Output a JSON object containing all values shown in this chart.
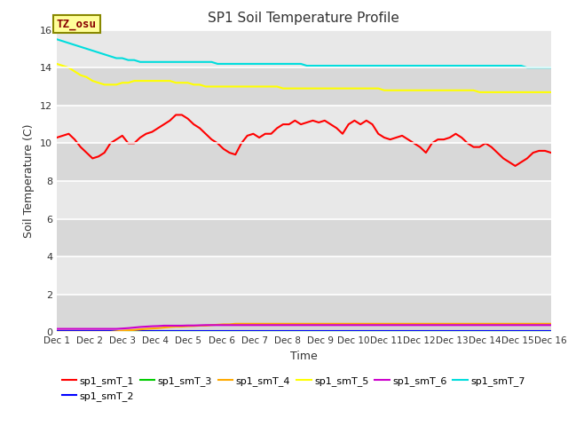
{
  "title": "SP1 Soil Temperature Profile",
  "xlabel": "Time",
  "ylabel": "Soil Temperature (C)",
  "bg_color_light": "#ebebeb",
  "bg_color_dark": "#d8d8d8",
  "fig_color": "#ffffff",
  "annotation_text": "TZ_osu",
  "annotation_bg": "#ffff99",
  "annotation_border": "#999900",
  "annotation_text_color": "#880000",
  "ylim": [
    0,
    16
  ],
  "yticks": [
    0,
    2,
    4,
    6,
    8,
    10,
    12,
    14,
    16
  ],
  "xtick_labels": [
    "Dec 1",
    "Dec 2",
    "Dec 3",
    "Dec 4",
    "Dec 5",
    "Dec 6",
    "Dec 7",
    "Dec 8",
    "Dec 9",
    "Dec 9",
    "Dec 10",
    "Dec 11",
    "Dec 12",
    "Dec 13",
    "Dec 14",
    "Dec 15",
    "Dec 16"
  ],
  "series": {
    "sp1_smT_1": {
      "color": "#ff0000",
      "lw": 1.5,
      "values": [
        10.3,
        10.4,
        10.5,
        10.2,
        9.8,
        9.5,
        9.2,
        9.3,
        9.5,
        10.0,
        10.2,
        10.4,
        10.0,
        10.0,
        10.3,
        10.5,
        10.6,
        10.8,
        11.0,
        11.2,
        11.5,
        11.5,
        11.3,
        11.0,
        10.8,
        10.5,
        10.2,
        10.0,
        9.7,
        9.5,
        9.4,
        10.0,
        10.4,
        10.5,
        10.3,
        10.5,
        10.5,
        10.8,
        11.0,
        11.0,
        11.2,
        11.0,
        11.1,
        11.2,
        11.1,
        11.2,
        11.0,
        10.8,
        10.5,
        11.0,
        11.2,
        11.0,
        11.2,
        11.0,
        10.5,
        10.3,
        10.2,
        10.3,
        10.4,
        10.2,
        10.0,
        9.8,
        9.5,
        10.0,
        10.2,
        10.2,
        10.3,
        10.5,
        10.3,
        10.0,
        9.8,
        9.8,
        10.0,
        9.8,
        9.5,
        9.2,
        9.0,
        8.8,
        9.0,
        9.2,
        9.5,
        9.6,
        9.6,
        9.5
      ]
    },
    "sp1_smT_2": {
      "color": "#0000ff",
      "lw": 1.5,
      "values": [
        0.08,
        0.08,
        0.08,
        0.08,
        0.08,
        0.08,
        0.08,
        0.08,
        0.08,
        0.08,
        0.08,
        0.08,
        0.08,
        0.08,
        0.08,
        0.08,
        0.08,
        0.08,
        0.08,
        0.08,
        0.08,
        0.08,
        0.08,
        0.08,
        0.08,
        0.08,
        0.08,
        0.08,
        0.08,
        0.08,
        0.08,
        0.08,
        0.08,
        0.08,
        0.08,
        0.08,
        0.08,
        0.08,
        0.08,
        0.08,
        0.08,
        0.08,
        0.08,
        0.08,
        0.08,
        0.08,
        0.08,
        0.08,
        0.08,
        0.08,
        0.08,
        0.08,
        0.08,
        0.08,
        0.08,
        0.08,
        0.08,
        0.08,
        0.08,
        0.08,
        0.08,
        0.08,
        0.08,
        0.08,
        0.08,
        0.08,
        0.08,
        0.08,
        0.08,
        0.08,
        0.08,
        0.08,
        0.08,
        0.08,
        0.08,
        0.08,
        0.08,
        0.08,
        0.08,
        0.08,
        0.08,
        0.08,
        0.08,
        0.08
      ]
    },
    "sp1_smT_3": {
      "color": "#00cc00",
      "lw": 1.5,
      "values": [
        0.02,
        0.02,
        0.02,
        0.02,
        0.02,
        0.02,
        0.02,
        0.02,
        0.02,
        0.02,
        0.02,
        0.02,
        0.02,
        0.02,
        0.02,
        0.02,
        0.02,
        0.02,
        0.02,
        0.02,
        0.02,
        0.02,
        0.02,
        0.02,
        0.02,
        0.02,
        0.02,
        0.02,
        0.02,
        0.02,
        0.02,
        0.02,
        0.02,
        0.02,
        0.02,
        0.02,
        0.02,
        0.02,
        0.02,
        0.02,
        0.02,
        0.02,
        0.02,
        0.02,
        0.02,
        0.02,
        0.02,
        0.02,
        0.02,
        0.02,
        0.02,
        0.02,
        0.02,
        0.02,
        0.02,
        0.02,
        0.02,
        0.02,
        0.02,
        0.02,
        0.02,
        0.02,
        0.02,
        0.02,
        0.02,
        0.02,
        0.02,
        0.02,
        0.02,
        0.02,
        0.02,
        0.02,
        0.02,
        0.02,
        0.02,
        0.02,
        0.02,
        0.02,
        0.02,
        0.02,
        0.02,
        0.02,
        0.02,
        0.02
      ]
    },
    "sp1_smT_4": {
      "color": "#ffaa00",
      "lw": 1.5,
      "values": [
        0.02,
        0.02,
        0.02,
        0.02,
        0.02,
        0.02,
        0.02,
        0.02,
        0.02,
        0.02,
        0.05,
        0.08,
        0.1,
        0.12,
        0.15,
        0.18,
        0.2,
        0.22,
        0.25,
        0.28,
        0.3,
        0.3,
        0.32,
        0.33,
        0.35,
        0.35,
        0.38,
        0.4,
        0.42,
        0.42,
        0.45,
        0.45,
        0.45,
        0.45,
        0.45,
        0.45,
        0.45,
        0.45,
        0.45,
        0.45,
        0.45,
        0.45,
        0.45,
        0.45,
        0.45,
        0.45,
        0.45,
        0.45,
        0.45,
        0.45,
        0.45,
        0.45,
        0.45,
        0.45,
        0.45,
        0.45,
        0.45,
        0.45,
        0.45,
        0.45,
        0.45,
        0.45,
        0.45,
        0.45,
        0.45,
        0.45,
        0.45,
        0.45,
        0.45,
        0.45,
        0.45,
        0.45,
        0.45,
        0.45,
        0.45,
        0.45,
        0.45,
        0.45,
        0.45,
        0.45,
        0.45,
        0.45,
        0.45,
        0.45
      ]
    },
    "sp1_smT_5": {
      "color": "#ffff00",
      "lw": 1.5,
      "values": [
        14.2,
        14.1,
        14.0,
        13.8,
        13.6,
        13.5,
        13.3,
        13.2,
        13.1,
        13.1,
        13.1,
        13.2,
        13.2,
        13.3,
        13.3,
        13.3,
        13.3,
        13.3,
        13.3,
        13.3,
        13.2,
        13.2,
        13.2,
        13.1,
        13.1,
        13.0,
        13.0,
        13.0,
        13.0,
        13.0,
        13.0,
        13.0,
        13.0,
        13.0,
        13.0,
        13.0,
        13.0,
        13.0,
        12.9,
        12.9,
        12.9,
        12.9,
        12.9,
        12.9,
        12.9,
        12.9,
        12.9,
        12.9,
        12.9,
        12.9,
        12.9,
        12.9,
        12.9,
        12.9,
        12.9,
        12.8,
        12.8,
        12.8,
        12.8,
        12.8,
        12.8,
        12.8,
        12.8,
        12.8,
        12.8,
        12.8,
        12.8,
        12.8,
        12.8,
        12.8,
        12.8,
        12.7,
        12.7,
        12.7,
        12.7,
        12.7,
        12.7,
        12.7,
        12.7,
        12.7,
        12.7,
        12.7,
        12.7,
        12.7
      ]
    },
    "sp1_smT_6": {
      "color": "#cc00cc",
      "lw": 1.5,
      "values": [
        0.18,
        0.18,
        0.18,
        0.18,
        0.18,
        0.18,
        0.18,
        0.18,
        0.18,
        0.18,
        0.18,
        0.2,
        0.22,
        0.25,
        0.28,
        0.3,
        0.32,
        0.33,
        0.35,
        0.35,
        0.35,
        0.35,
        0.36,
        0.36,
        0.37,
        0.38,
        0.38,
        0.38,
        0.38,
        0.38,
        0.38,
        0.38,
        0.38,
        0.38,
        0.38,
        0.38,
        0.38,
        0.38,
        0.38,
        0.38,
        0.38,
        0.38,
        0.38,
        0.38,
        0.38,
        0.38,
        0.38,
        0.38,
        0.38,
        0.38,
        0.38,
        0.38,
        0.38,
        0.38,
        0.38,
        0.38,
        0.38,
        0.38,
        0.38,
        0.38,
        0.38,
        0.38,
        0.38,
        0.38,
        0.38,
        0.38,
        0.38,
        0.38,
        0.38,
        0.38,
        0.38,
        0.38,
        0.38,
        0.38,
        0.38,
        0.38,
        0.38,
        0.38,
        0.38,
        0.38,
        0.38,
        0.38,
        0.38,
        0.38
      ]
    },
    "sp1_smT_7": {
      "color": "#00dddd",
      "lw": 1.5,
      "values": [
        15.5,
        15.4,
        15.3,
        15.2,
        15.1,
        15.0,
        14.9,
        14.8,
        14.7,
        14.6,
        14.5,
        14.5,
        14.4,
        14.4,
        14.3,
        14.3,
        14.3,
        14.3,
        14.3,
        14.3,
        14.3,
        14.3,
        14.3,
        14.3,
        14.3,
        14.3,
        14.3,
        14.2,
        14.2,
        14.2,
        14.2,
        14.2,
        14.2,
        14.2,
        14.2,
        14.2,
        14.2,
        14.2,
        14.2,
        14.2,
        14.2,
        14.2,
        14.1,
        14.1,
        14.1,
        14.1,
        14.1,
        14.1,
        14.1,
        14.1,
        14.1,
        14.1,
        14.1,
        14.1,
        14.1,
        14.1,
        14.1,
        14.1,
        14.1,
        14.1,
        14.1,
        14.1,
        14.1,
        14.1,
        14.1,
        14.1,
        14.1,
        14.1,
        14.1,
        14.1,
        14.1,
        14.1,
        14.1,
        14.1,
        14.1,
        14.1,
        14.1,
        14.1,
        14.1,
        14.0,
        14.0,
        14.0,
        14.0,
        14.0
      ]
    }
  },
  "legend_order": [
    "sp1_smT_1",
    "sp1_smT_2",
    "sp1_smT_3",
    "sp1_smT_4",
    "sp1_smT_5",
    "sp1_smT_6",
    "sp1_smT_7"
  ],
  "legend_labels": [
    "sp1_smT_1",
    "sp1_smT_2",
    "sp1_smT_3",
    "sp1_smT_4",
    "sp1_smT_5",
    "sp1_smT_6",
    "sp1_smT_7"
  ]
}
